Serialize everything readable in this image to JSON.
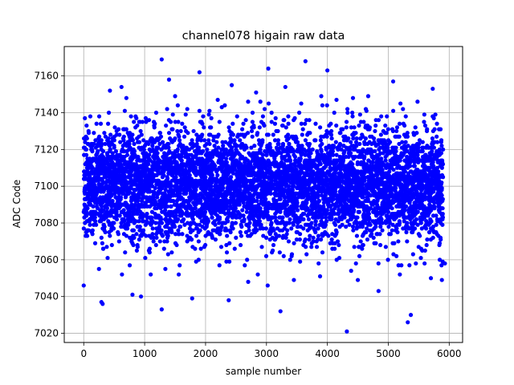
{
  "chart_data": {
    "type": "scatter",
    "title": "channel078 higain raw data",
    "xlabel": "sample number",
    "ylabel": "ADC Code",
    "xlim": [
      -320,
      6220
    ],
    "ylim": [
      7015,
      7176
    ],
    "xticks": [
      0,
      1000,
      2000,
      3000,
      4000,
      5000,
      6000
    ],
    "yticks": [
      7020,
      7040,
      7060,
      7080,
      7100,
      7120,
      7140,
      7160
    ],
    "grid": true,
    "marker_color": "#0000ff",
    "sample_count": 5900,
    "baseline": 7101,
    "noise_sigma": 15,
    "series": [
      {
        "points": [
          [
            0,
            7046
          ],
          [
            290,
            7037
          ],
          [
            310,
            7036
          ],
          [
            800,
            7041
          ],
          [
            940,
            7040
          ],
          [
            1280,
            7169
          ],
          [
            1280,
            7033
          ],
          [
            1780,
            7039
          ],
          [
            1900,
            7162
          ],
          [
            2380,
            7038
          ],
          [
            3030,
            7164
          ],
          [
            3230,
            7032
          ],
          [
            3640,
            7168
          ],
          [
            4000,
            7163
          ],
          [
            4320,
            7021
          ],
          [
            4840,
            7043
          ],
          [
            5080,
            7157
          ],
          [
            5320,
            7026
          ],
          [
            5370,
            7030
          ],
          [
            5730,
            7153
          ],
          [
            5880,
            7049
          ],
          [
            5930,
            7058
          ],
          [
            250,
            7055
          ],
          [
            430,
            7152
          ],
          [
            1560,
            7052
          ],
          [
            2700,
            7048
          ],
          [
            3020,
            7046
          ],
          [
            3450,
            7049
          ],
          [
            3880,
            7051
          ],
          [
            4500,
            7049
          ],
          [
            5190,
            7052
          ],
          [
            620,
            7154
          ],
          [
            1400,
            7158
          ],
          [
            2430,
            7155
          ],
          [
            2830,
            7151
          ],
          [
            3310,
            7154
          ],
          [
            4420,
            7148
          ],
          [
            4670,
            7149
          ],
          [
            5700,
            7050
          ],
          [
            1100,
            7052
          ],
          [
            2200,
            7147
          ],
          [
            3900,
            7149
          ],
          [
            5480,
            7146
          ],
          [
            700,
            7148
          ],
          [
            1500,
            7149
          ],
          [
            2900,
            7146
          ],
          [
            4150,
            7147
          ],
          [
            5200,
            7145
          ]
        ]
      }
    ]
  }
}
